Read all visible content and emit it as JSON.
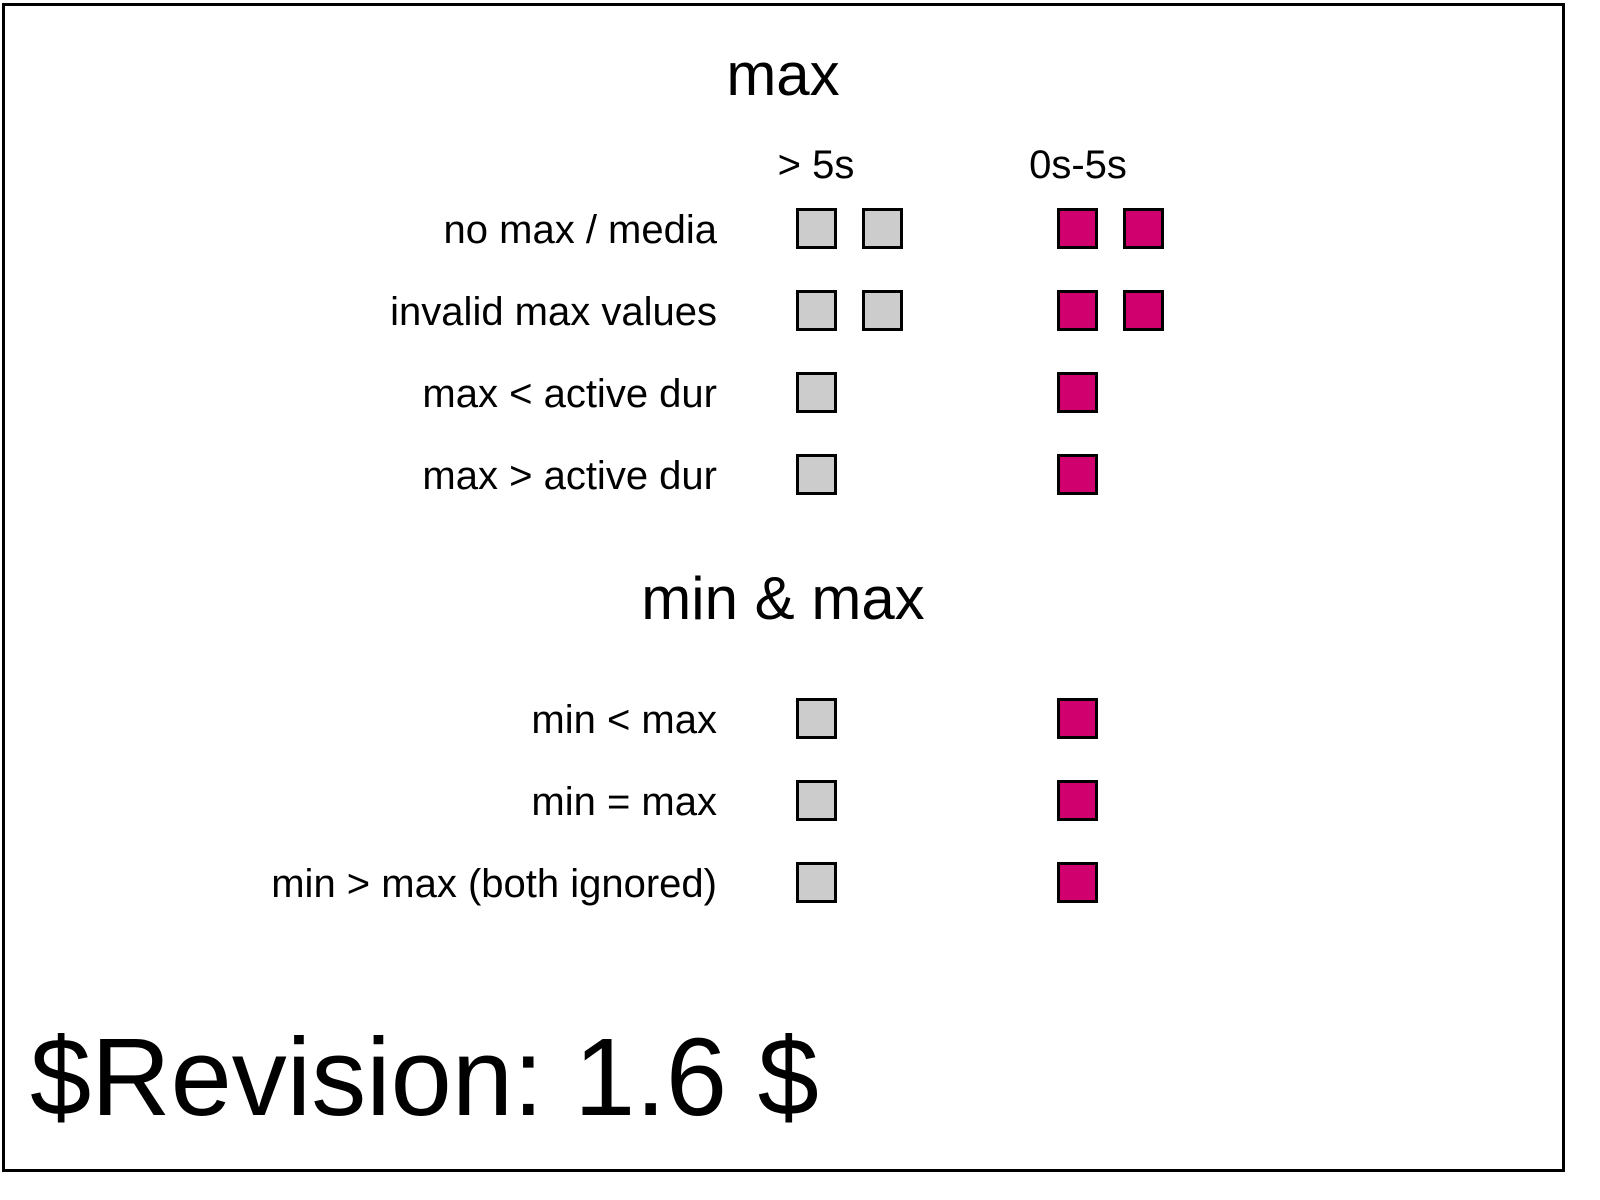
{
  "colors": {
    "gray_square": "#cccccc",
    "magenta_square": "#d0006f",
    "border": "#000000"
  },
  "sections": {
    "max": {
      "title": "max",
      "col_headers": [
        "> 5s",
        "0s-5s"
      ],
      "rows": [
        {
          "label": "no max / media",
          "gray": 2,
          "magenta": 2
        },
        {
          "label": "invalid max values",
          "gray": 2,
          "magenta": 2
        },
        {
          "label": "max < active dur",
          "gray": 1,
          "magenta": 1
        },
        {
          "label": "max > active dur",
          "gray": 1,
          "magenta": 1
        }
      ]
    },
    "min_max": {
      "title": "min & max",
      "rows": [
        {
          "label": "min < max",
          "gray": 1,
          "magenta": 1
        },
        {
          "label": "min = max",
          "gray": 1,
          "magenta": 1
        },
        {
          "label": "min > max (both ignored)",
          "gray": 1,
          "magenta": 1
        }
      ]
    }
  },
  "revision": "$Revision: 1.6 $"
}
